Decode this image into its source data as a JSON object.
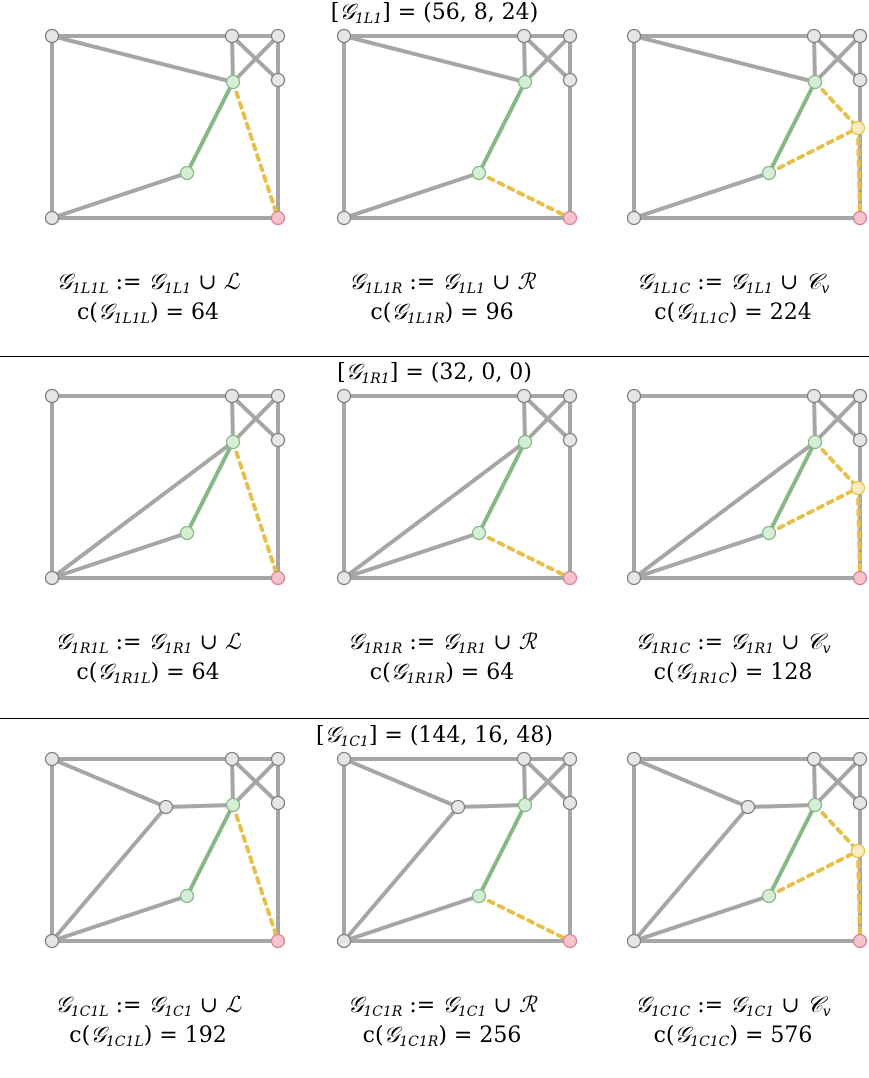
{
  "sections": [
    {
      "id": "1L1",
      "header_sym": "𝒢",
      "header_sub": "1L1",
      "header_value": "= (56, 8, 24)",
      "graphs": [
        {
          "variant": "L",
          "sym": "𝒢",
          "sub": "1L1L",
          "def_sub": "1L1",
          "op": "∪",
          "addend": "ℒ",
          "addend_sub": "",
          "cost_sub": "1L1L",
          "cost": "64"
        },
        {
          "variant": "R",
          "sym": "𝒢",
          "sub": "1L1R",
          "def_sub": "1L1",
          "op": "∪",
          "addend": "ℛ",
          "addend_sub": "",
          "cost_sub": "1L1R",
          "cost": "96"
        },
        {
          "variant": "C",
          "sym": "𝒢",
          "sub": "1L1C",
          "def_sub": "1L1",
          "op": "∪",
          "addend": "𝒞",
          "addend_sub": "v",
          "cost_sub": "1L1C",
          "cost": "224"
        }
      ]
    },
    {
      "id": "1R1",
      "header_sym": "𝒢",
      "header_sub": "1R1",
      "header_value": "= (32, 0, 0)",
      "graphs": [
        {
          "variant": "L",
          "sym": "𝒢",
          "sub": "1R1L",
          "def_sub": "1R1",
          "op": "∪",
          "addend": "ℒ",
          "addend_sub": "",
          "cost_sub": "1R1L",
          "cost": "64"
        },
        {
          "variant": "R",
          "sym": "𝒢",
          "sub": "1R1R",
          "def_sub": "1R1",
          "op": "∪",
          "addend": "ℛ",
          "addend_sub": "",
          "cost_sub": "1R1R",
          "cost": "64"
        },
        {
          "variant": "C",
          "sym": "𝒢",
          "sub": "1R1C",
          "def_sub": "1R1",
          "op": "∪",
          "addend": "𝒞",
          "addend_sub": "v",
          "cost_sub": "1R1C",
          "cost": "128"
        }
      ]
    },
    {
      "id": "1C1",
      "header_sym": "𝒢",
      "header_sub": "1C1",
      "header_value": "= (144, 16, 48)",
      "graphs": [
        {
          "variant": "L",
          "sym": "𝒢",
          "sub": "1C1L",
          "def_sub": "1C1",
          "op": "∪",
          "addend": "ℒ",
          "addend_sub": "",
          "cost_sub": "1C1L",
          "cost": "192"
        },
        {
          "variant": "R",
          "sym": "𝒢",
          "sub": "1C1R",
          "def_sub": "1C1",
          "op": "∪",
          "addend": "ℛ",
          "addend_sub": "",
          "cost_sub": "1C1R",
          "cost": "256"
        },
        {
          "variant": "C",
          "sym": "𝒢",
          "sub": "1C1C",
          "def_sub": "1C1",
          "op": "∪",
          "addend": "𝒞",
          "addend_sub": "v",
          "cost_sub": "1C1C",
          "cost": "576"
        }
      ]
    }
  ],
  "colors": {
    "edge": "#a6a6a6",
    "node_fill": "#e6e6e6",
    "node_stroke": "#808080",
    "green_edge": "#86b886",
    "green_node_fill": "#d6eed6",
    "green_node_stroke": "#86b886",
    "dotted_edge": "#e6c04a",
    "yellow_node_fill": "#faeec0",
    "yellow_node_stroke": "#e6c04a",
    "red_node_fill": "#f6c4cc",
    "red_node_stroke": "#d88090"
  },
  "cost_prefix": "c(",
  "def_symbol": ":=",
  "bracket_open": "[",
  "bracket_close": "]"
}
